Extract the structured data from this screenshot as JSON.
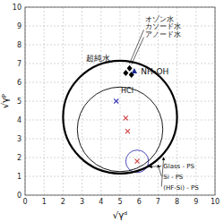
{
  "chart_data": {
    "type": "scatter",
    "x_label": "√γᵈ",
    "y_label": "√γᵖ",
    "xlim": [
      0,
      10
    ],
    "ylim": [
      0,
      10
    ],
    "xticks": [
      0,
      1,
      2,
      3,
      4,
      5,
      6,
      7,
      8,
      9,
      10
    ],
    "yticks": [
      0,
      1,
      2,
      3,
      4,
      5,
      6,
      7,
      8,
      9,
      10
    ],
    "grid": true,
    "series": [
      {
        "color": "#000000",
        "marker": "diamond",
        "x": [
          5.3,
          5.5,
          5.6
        ],
        "y": [
          6.5,
          6.75,
          6.4
        ]
      },
      {
        "color": "#1f2f8f",
        "marker": "triangle",
        "x": [
          5.75
        ],
        "y": [
          6.6
        ]
      },
      {
        "color": "#3a3ab8",
        "marker": "x",
        "x": [
          4.8
        ],
        "y": [
          5.0
        ]
      },
      {
        "color": "#d04040",
        "marker": "x",
        "x": [
          5.3,
          5.4,
          5.9
        ],
        "y": [
          4.1,
          3.4,
          1.8
        ]
      }
    ],
    "circles": [
      {
        "name": "Glass - PS",
        "color": "#3a3ab8",
        "x": 5.9,
        "y": 1.8,
        "radius": 0.6
      },
      {
        "name": "Si - PS",
        "color": "#000000",
        "x": 5.0,
        "y": 3.5,
        "radius": 2.25
      },
      {
        "name": "(HF-Si) - PS",
        "color": "#000000",
        "x": 5.0,
        "y": 4.15,
        "radius": 3.0
      }
    ],
    "annotations": [
      "オゾン水",
      "カソード水",
      "アノード水",
      "超純水",
      "NH₄OH",
      "HCl"
    ]
  }
}
